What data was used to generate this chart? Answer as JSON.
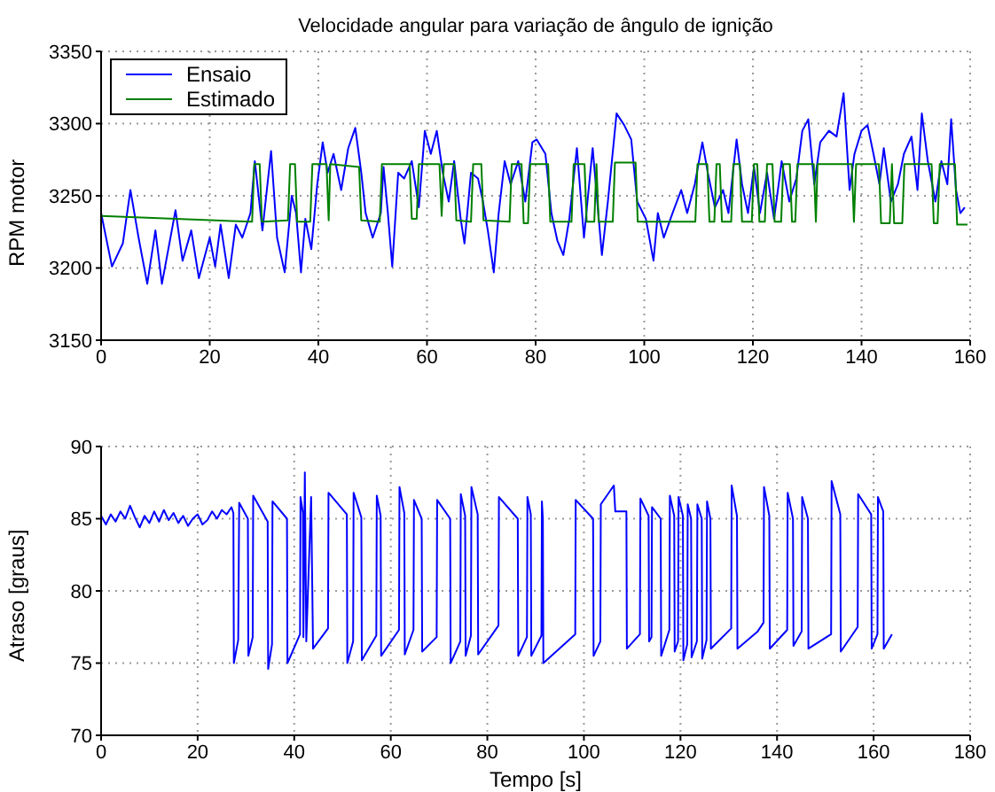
{
  "chart_data": [
    {
      "type": "line",
      "title": "Velocidade angular para variação de ângulo de ignição",
      "ylabel": "RPM motor",
      "xlim": [
        0,
        160
      ],
      "xticks": [
        0,
        20,
        40,
        60,
        80,
        100,
        120,
        140,
        160
      ],
      "ylim": [
        3150,
        3350
      ],
      "yticks": [
        3150,
        3200,
        3250,
        3300,
        3350
      ],
      "grid": true,
      "legend": "top left",
      "series": [
        {
          "name": "Ensaio",
          "color": "#0000ff",
          "x": [
            0,
            2,
            4,
            5.4,
            6.9,
            8.5,
            10,
            11.2,
            13.7,
            15,
            16.6,
            18,
            20,
            21,
            22,
            23.5,
            24.8,
            26,
            27.5,
            28.3,
            29.7,
            31.3,
            32.4,
            33.8,
            35.1,
            35.9,
            36.8,
            37.6,
            38.7,
            39.8,
            40.8,
            41.7,
            42.8,
            44.2,
            45.5,
            46.8,
            47.9,
            48.7,
            50,
            51.5,
            52,
            52.8,
            53.6,
            54.7,
            55.8,
            57.2,
            58.5,
            59.6,
            60.7,
            61.8,
            62.9,
            64,
            65,
            66.2,
            66.9,
            68.1,
            69.4,
            70.3,
            71.2,
            72.3,
            73.2,
            74.3,
            75.4,
            76.8,
            78.1,
            79.4,
            80.2,
            81.8,
            82.9,
            84,
            85.1,
            86.2,
            87.6,
            88.9,
            90.5,
            92.2,
            93.3,
            94.9,
            96.3,
            97.6,
            98.7,
            100.3,
            101.7,
            102.5,
            103.6,
            105.2,
            106.8,
            107.9,
            109.3,
            110.7,
            111.7,
            113,
            114.5,
            115.5,
            117,
            118,
            119.1,
            120.2,
            121.3,
            122.6,
            123.9,
            125.3,
            126.7,
            128,
            129.1,
            130.2,
            131.3,
            132.4,
            134,
            135.4,
            136.7,
            137.8,
            138.7,
            140,
            141.1,
            142.2,
            143.3,
            144.1,
            145.4,
            146.7,
            147.8,
            149.2,
            150.3,
            151.1,
            152.2,
            153.6,
            154.7,
            155.8,
            156.5,
            157.4,
            158.2,
            159
          ],
          "values": [
            3238,
            3201,
            3217,
            3254,
            3221,
            3189,
            3226,
            3189,
            3240,
            3205,
            3226,
            3193,
            3221,
            3201,
            3230,
            3193,
            3230,
            3221,
            3238,
            3274,
            3226,
            3281,
            3221,
            3197,
            3250,
            3238,
            3197,
            3234,
            3213,
            3258,
            3287,
            3266,
            3279,
            3254,
            3283,
            3297,
            3266,
            3238,
            3221,
            3238,
            3270,
            3238,
            3201,
            3266,
            3262,
            3274,
            3242,
            3295,
            3279,
            3295,
            3266,
            3246,
            3274,
            3234,
            3217,
            3266,
            3262,
            3246,
            3226,
            3197,
            3238,
            3274,
            3258,
            3274,
            3246,
            3287,
            3289,
            3279,
            3238,
            3219,
            3209,
            3234,
            3283,
            3221,
            3283,
            3209,
            3246,
            3307,
            3299,
            3289,
            3246,
            3234,
            3205,
            3238,
            3221,
            3238,
            3254,
            3238,
            3258,
            3287,
            3266,
            3242,
            3254,
            3238,
            3289,
            3258,
            3238,
            3270,
            3238,
            3266,
            3234,
            3274,
            3246,
            3262,
            3295,
            3303,
            3258,
            3287,
            3295,
            3291,
            3321,
            3254,
            3279,
            3295,
            3299,
            3279,
            3258,
            3283,
            3246,
            3258,
            3279,
            3291,
            3254,
            3307,
            3274,
            3246,
            3274,
            3258,
            3303,
            3254,
            3238,
            3242
          ]
        },
        {
          "name": "Estimado",
          "color": "#008000",
          "x": [
            0,
            27.8,
            28.2,
            29.2,
            29.6,
            34.4,
            34.8,
            35.7,
            36.1,
            38.5,
            38.9,
            41.5,
            41.9,
            42.2,
            47.5,
            47.9,
            51.3,
            51.7,
            56.8,
            57.2,
            58.1,
            58.5,
            62.3,
            62.7,
            63.1,
            65,
            65.4,
            68.1,
            68.5,
            70,
            70.4,
            75.2,
            75.6,
            77.4,
            77.8,
            78.6,
            79,
            82.3,
            82.7,
            86.6,
            87,
            89,
            89.4,
            90.8,
            91.2,
            91.6,
            94.2,
            94.6,
            98.4,
            98.8,
            109.4,
            109.8,
            111.6,
            112,
            112.9,
            113.3,
            113.9,
            114.3,
            116,
            116.4,
            117.6,
            118,
            119.8,
            120.2,
            120.8,
            121.2,
            122.2,
            122.6,
            123.6,
            124,
            125.2,
            125.6,
            126.8,
            127.2,
            127.8,
            128.2,
            131.2,
            131.6,
            131.9,
            138.2,
            138.6,
            139,
            143.2,
            143.6,
            145.2,
            145.6,
            146,
            147.5,
            147.9,
            152.9,
            153.3,
            154,
            154.4,
            157.2,
            157.6,
            159.5
          ],
          "values": [
            3236,
            3232,
            3272,
            3272,
            3232,
            3233,
            3272,
            3272,
            3232,
            3232,
            3272,
            3272,
            3233,
            3272,
            3270,
            3233,
            3232,
            3272,
            3272,
            3234,
            3234,
            3272,
            3272,
            3236,
            3272,
            3272,
            3233,
            3232,
            3272,
            3272,
            3233,
            3232,
            3272,
            3272,
            3231,
            3231,
            3272,
            3272,
            3232,
            3232,
            3272,
            3272,
            3232,
            3232,
            3272,
            3232,
            3232,
            3273,
            3273,
            3232,
            3232,
            3272,
            3272,
            3232,
            3232,
            3272,
            3272,
            3232,
            3232,
            3272,
            3272,
            3232,
            3232,
            3272,
            3272,
            3232,
            3232,
            3272,
            3272,
            3232,
            3232,
            3272,
            3272,
            3232,
            3232,
            3272,
            3272,
            3232,
            3272,
            3272,
            3232,
            3272,
            3272,
            3231,
            3231,
            3272,
            3231,
            3231,
            3272,
            3272,
            3231,
            3231,
            3272,
            3272,
            3230,
            3230
          ]
        }
      ]
    },
    {
      "type": "line",
      "xlabel": "Tempo [s]",
      "ylabel": "Atraso [graus]",
      "xlim": [
        0,
        180
      ],
      "xticks": [
        0,
        20,
        40,
        60,
        80,
        100,
        120,
        140,
        160,
        180
      ],
      "ylim": [
        70,
        90
      ],
      "yticks": [
        70,
        75,
        80,
        85,
        90
      ],
      "grid": true,
      "series": [
        {
          "color": "#0000ff",
          "x": [
            0,
            1,
            2,
            3,
            4,
            5,
            6,
            7,
            8,
            9,
            10,
            11,
            12,
            13,
            14,
            15,
            16,
            17,
            18,
            19,
            20,
            21,
            22,
            23,
            24,
            25,
            26,
            27,
            27.4,
            27.5,
            28.4,
            28.6,
            30.4,
            30.5,
            31.4,
            31.5,
            34.5,
            34.6,
            35.4,
            35.5,
            38.5,
            38.6,
            41.2,
            41.3,
            41.8,
            41.9,
            42.2,
            42.5,
            43.5,
            43.9,
            47,
            47.1,
            50.9,
            51,
            52.2,
            52.3,
            53.9,
            54,
            57,
            57.1,
            57.9,
            58,
            61.7,
            61.8,
            62.8,
            62.9,
            64.7,
            64.8,
            66.4,
            66.5,
            69.5,
            69.6,
            72.3,
            72.4,
            74.4,
            74.5,
            75.4,
            75.5,
            76.6,
            76.7,
            78,
            78.1,
            82.3,
            82.4,
            86.3,
            86.4,
            88.2,
            88.3,
            89,
            89.1,
            91.2,
            91.3,
            91.5,
            91.6,
            98.2,
            98.3,
            101.9,
            102,
            103.4,
            103.5,
            106.2,
            106.5,
            108.8,
            108.9,
            111.6,
            111.7,
            113.4,
            113.5,
            114,
            114.1,
            115.9,
            116,
            117.7,
            117.8,
            118.7,
            118.8,
            119.5,
            119.6,
            120.5,
            120.6,
            121.4,
            121.5,
            122.2,
            122.3,
            123.4,
            123.5,
            124.4,
            124.5,
            125.4,
            125.5,
            126.2,
            126.3,
            130.5,
            130.6,
            131.7,
            131.8,
            136,
            137.2,
            137.3,
            138.4,
            138.5,
            142.1,
            142.2,
            143.3,
            143.4,
            145.1,
            145.2,
            146.4,
            146.5,
            151.2,
            151.3,
            153.1,
            153.2,
            156.7,
            156.8,
            159.5,
            159.6,
            160.8,
            160.9,
            162,
            162.1,
            163.8
          ],
          "values": [
            85.2,
            84.6,
            85.3,
            84.8,
            85.5,
            85.0,
            85.9,
            85.1,
            84.4,
            85.2,
            84.7,
            85.5,
            84.8,
            85.6,
            84.9,
            85.4,
            84.7,
            85.2,
            84.5,
            85.0,
            85.3,
            84.6,
            84.9,
            85.5,
            85.0,
            85.6,
            85.3,
            85.8,
            85.4,
            75.0,
            76.6,
            86.1,
            85.0,
            75.5,
            76.8,
            86.6,
            84.8,
            74.6,
            76.3,
            86.2,
            85.0,
            75.0,
            77.0,
            86.5,
            85.4,
            76.8,
            88.2,
            76.5,
            86.5,
            76.0,
            77.4,
            86.8,
            85.3,
            75.0,
            76.5,
            86.8,
            85.1,
            75.2,
            76.9,
            86.6,
            85.2,
            75.5,
            77.3,
            87.2,
            85.4,
            75.6,
            77.3,
            86.3,
            85.0,
            75.8,
            76.8,
            86.3,
            85.0,
            75.0,
            76.5,
            86.7,
            85.2,
            75.5,
            76.9,
            87.2,
            85.3,
            75.6,
            77.6,
            86.5,
            85.0,
            75.5,
            76.8,
            86.5,
            85.3,
            75.5,
            76.9,
            86.2,
            85.0,
            75.0,
            77.0,
            86.3,
            85.0,
            75.5,
            76.5,
            86.0,
            87.3,
            85.5,
            85.5,
            76.0,
            77.0,
            86.4,
            85.2,
            76.5,
            76.8,
            85.8,
            85.0,
            75.5,
            77.3,
            86.6,
            85.2,
            75.8,
            76.5,
            86.5,
            85.2,
            75.2,
            76.3,
            86.0,
            85.0,
            75.4,
            76.5,
            86.0,
            85.0,
            75.3,
            76.6,
            86.2,
            85.0,
            76.0,
            77.4,
            87.3,
            85.2,
            76.0,
            77.2,
            77.8,
            87.2,
            85.2,
            76.0,
            77.3,
            86.8,
            85.0,
            76.2,
            77.2,
            86.5,
            85.0,
            76.0,
            77.0,
            87.6,
            85.3,
            75.8,
            77.5,
            86.7,
            85.3,
            76.0,
            77.0,
            86.5,
            85.5,
            76.0,
            77.0
          ]
        }
      ]
    }
  ]
}
